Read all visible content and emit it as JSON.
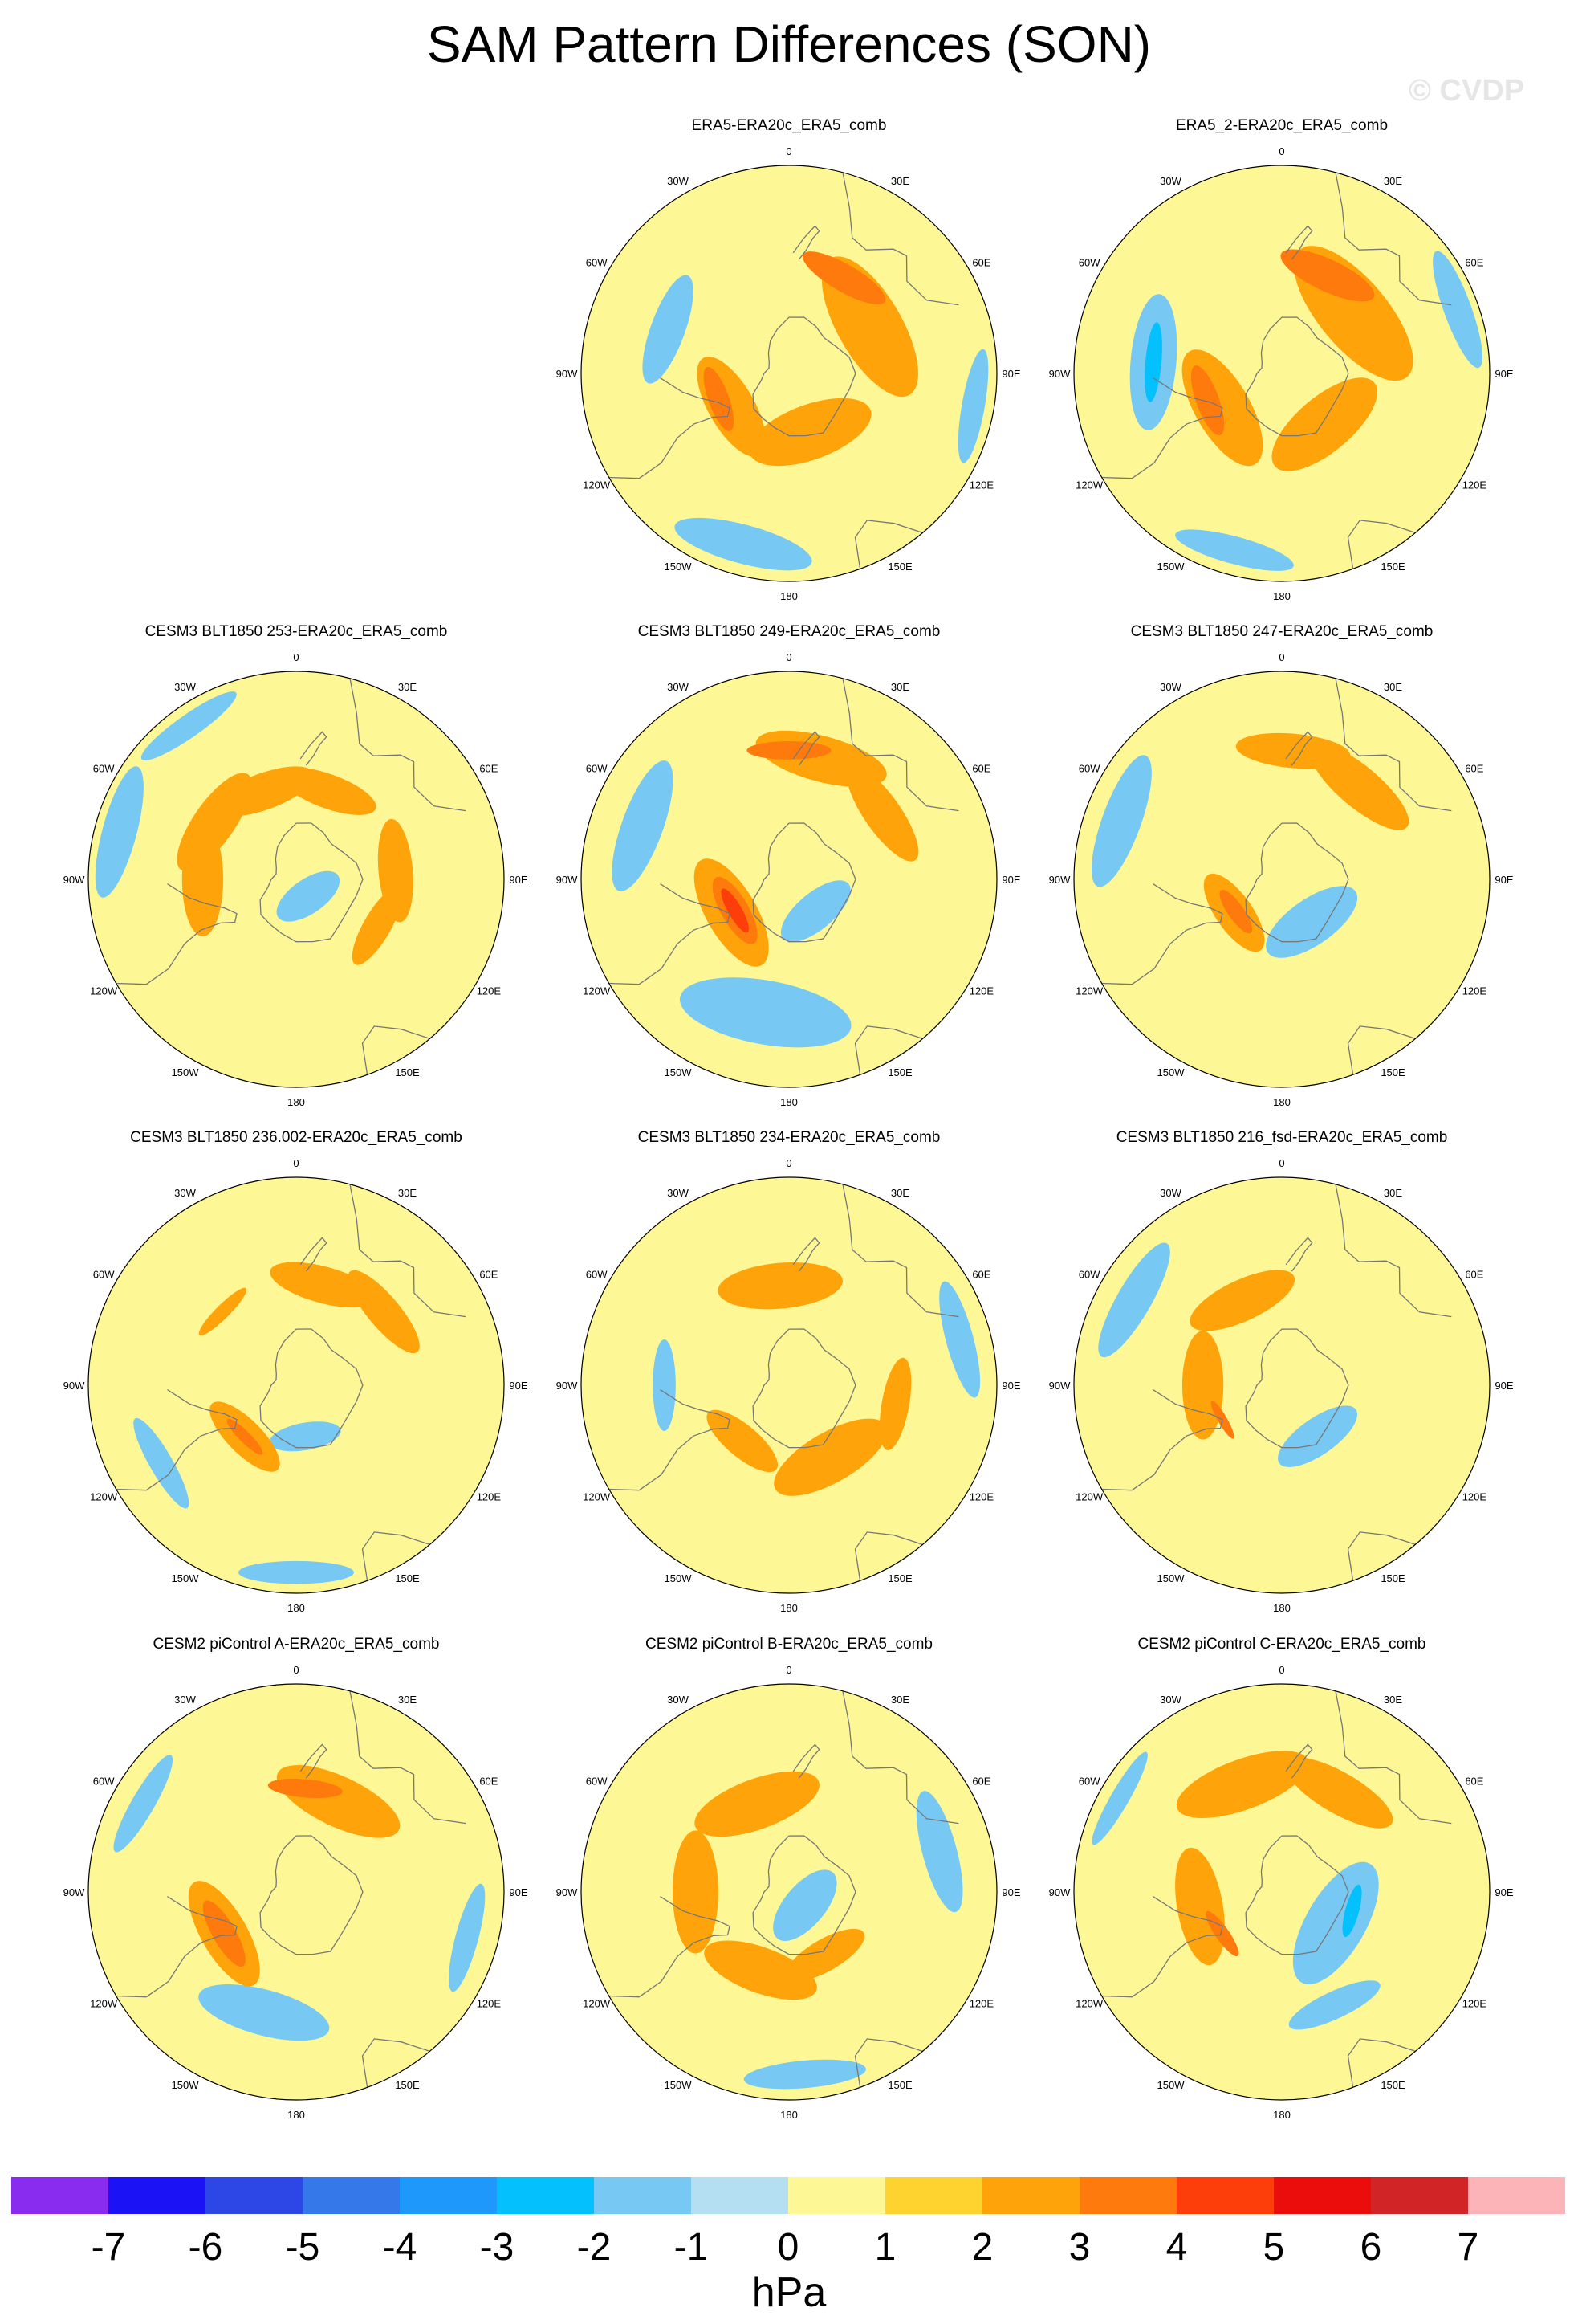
{
  "figure": {
    "title": "SAM Pattern Differences (SON)",
    "watermark": "© CVDP"
  },
  "colors": {
    "background": "#ffffff",
    "land_outline": "#777777",
    "map_border": "#000000"
  },
  "longitude_labels": [
    "0",
    "30E",
    "60E",
    "90E",
    "120E",
    "150E",
    "180",
    "150W",
    "120W",
    "90W",
    "60W",
    "30W"
  ],
  "chart_data": {
    "type": "polar-stereographic contour map panels",
    "variable": "SAM pattern difference",
    "units": "hPa",
    "panels": [
      {
        "title": "ERA5-ERA20c_ERA5_comb",
        "max_positive": 3,
        "min_negative": -1,
        "features": [
          {
            "lon": 150,
            "r": 0.53,
            "v": 3,
            "rw": 0.12
          },
          {
            "lon": 120,
            "r": 0.45,
            "v": 2,
            "rw": 0.28
          },
          {
            "lon": 290,
            "r": 0.36,
            "v": 3,
            "rw": 0.09
          },
          {
            "lon": 300,
            "r": 0.32,
            "v": 2,
            "rw": 0.2
          },
          {
            "lon": 20,
            "r": 0.3,
            "v": 2,
            "rw": 0.24
          },
          {
            "lon": 250,
            "r": 0.62,
            "v": -1,
            "rw": 0.15
          },
          {
            "lon": 345,
            "r": 0.85,
            "v": -1,
            "rw": 0.17
          },
          {
            "lon": 80,
            "r": 0.9,
            "v": -1,
            "rw": 0.1
          }
        ]
      },
      {
        "title": "ERA5_2-ERA20c_ERA5_comb",
        "max_positive": 3,
        "min_negative": -2,
        "features": [
          {
            "lon": 155,
            "r": 0.52,
            "v": 3,
            "rw": 0.14
          },
          {
            "lon": 130,
            "r": 0.45,
            "v": 2,
            "rw": 0.3
          },
          {
            "lon": 290,
            "r": 0.38,
            "v": 3,
            "rw": 0.1
          },
          {
            "lon": 300,
            "r": 0.33,
            "v": 2,
            "rw": 0.24
          },
          {
            "lon": 40,
            "r": 0.32,
            "v": 2,
            "rw": 0.24
          },
          {
            "lon": 265,
            "r": 0.62,
            "v": -2,
            "rw": 0.07
          },
          {
            "lon": 265,
            "r": 0.62,
            "v": -1,
            "rw": 0.2
          },
          {
            "lon": 110,
            "r": 0.9,
            "v": -1,
            "rw": 0.12
          },
          {
            "lon": 345,
            "r": 0.88,
            "v": -1,
            "rw": 0.12
          }
        ]
      },
      {
        "title": "CESM3 BLT1850 253-ERA20c_ERA5_comb",
        "max_positive": 2,
        "min_negative": -1,
        "features": [
          {
            "lon": 200,
            "r": 0.45,
            "v": 2,
            "rw": 0.16
          },
          {
            "lon": 235,
            "r": 0.48,
            "v": 2,
            "rw": 0.18
          },
          {
            "lon": 270,
            "r": 0.45,
            "v": 2,
            "rw": 0.18
          },
          {
            "lon": 160,
            "r": 0.45,
            "v": 2,
            "rw": 0.15
          },
          {
            "lon": 95,
            "r": 0.48,
            "v": 2,
            "rw": 0.15
          },
          {
            "lon": 60,
            "r": 0.45,
            "v": 2,
            "rw": 0.12
          },
          {
            "lon": 35,
            "r": 0.1,
            "v": -1,
            "rw": 0.15
          },
          {
            "lon": 255,
            "r": 0.88,
            "v": -1,
            "rw": 0.15
          },
          {
            "lon": 215,
            "r": 0.9,
            "v": -1,
            "rw": 0.1
          }
        ]
      },
      {
        "title": "CESM3 BLT1850 249-ERA20c_ERA5_comb",
        "max_positive": 4,
        "min_negative": -1,
        "features": [
          {
            "lon": 300,
            "r": 0.3,
            "v": 4,
            "rw": 0.06
          },
          {
            "lon": 300,
            "r": 0.3,
            "v": 3,
            "rw": 0.12
          },
          {
            "lon": 300,
            "r": 0.32,
            "v": 2,
            "rw": 0.22
          },
          {
            "lon": 180,
            "r": 0.62,
            "v": 3,
            "rw": 0.08
          },
          {
            "lon": 165,
            "r": 0.6,
            "v": 2,
            "rw": 0.2
          },
          {
            "lon": 125,
            "r": 0.55,
            "v": 2,
            "rw": 0.16
          },
          {
            "lon": 350,
            "r": 0.65,
            "v": -1,
            "rw": 0.28
          },
          {
            "lon": 40,
            "r": 0.2,
            "v": -1,
            "rw": 0.16
          },
          {
            "lon": 250,
            "r": 0.75,
            "v": -1,
            "rw": 0.18
          }
        ]
      },
      {
        "title": "CESM3 BLT1850 247-ERA20c_ERA5_comb",
        "max_positive": 3,
        "min_negative": -1,
        "features": [
          {
            "lon": 305,
            "r": 0.27,
            "v": 3,
            "rw": 0.07
          },
          {
            "lon": 305,
            "r": 0.28,
            "v": 2,
            "rw": 0.16
          },
          {
            "lon": 175,
            "r": 0.62,
            "v": 2,
            "rw": 0.15
          },
          {
            "lon": 140,
            "r": 0.58,
            "v": 2,
            "rw": 0.18
          },
          {
            "lon": 35,
            "r": 0.25,
            "v": -1,
            "rw": 0.2
          },
          {
            "lon": 250,
            "r": 0.82,
            "v": -1,
            "rw": 0.17
          }
        ]
      },
      {
        "title": "CESM3 BLT1850 236.002-ERA20c_ERA5_comb",
        "max_positive": 3,
        "min_negative": -1,
        "features": [
          {
            "lon": 315,
            "r": 0.35,
            "v": 3,
            "rw": 0.05
          },
          {
            "lon": 315,
            "r": 0.35,
            "v": 2,
            "rw": 0.15
          },
          {
            "lon": 165,
            "r": 0.5,
            "v": 2,
            "rw": 0.16
          },
          {
            "lon": 130,
            "r": 0.55,
            "v": 2,
            "rw": 0.14
          },
          {
            "lon": 225,
            "r": 0.5,
            "v": 2,
            "rw": 0.06
          },
          {
            "lon": 10,
            "r": 0.25,
            "v": -1,
            "rw": 0.12
          },
          {
            "lon": 0,
            "r": 0.9,
            "v": -1,
            "rw": 0.1
          },
          {
            "lon": 300,
            "r": 0.75,
            "v": -1,
            "rw": 0.1
          }
        ]
      },
      {
        "title": "CESM3 BLT1850 234-ERA20c_ERA5_comb",
        "max_positive": 2,
        "min_negative": -1,
        "features": [
          {
            "lon": 185,
            "r": 0.48,
            "v": 2,
            "rw": 0.2
          },
          {
            "lon": 30,
            "r": 0.4,
            "v": 2,
            "rw": 0.22
          },
          {
            "lon": 320,
            "r": 0.35,
            "v": 2,
            "rw": 0.14
          },
          {
            "lon": 80,
            "r": 0.52,
            "v": 2,
            "rw": 0.12
          },
          {
            "lon": 270,
            "r": 0.6,
            "v": -1,
            "rw": 0.1
          },
          {
            "lon": 105,
            "r": 0.85,
            "v": -1,
            "rw": 0.12
          }
        ]
      },
      {
        "title": "CESM3 BLT1850 216_fsd-ERA20c_ERA5_comb",
        "max_positive": 3,
        "min_negative": -1,
        "features": [
          {
            "lon": 300,
            "r": 0.33,
            "v": 3,
            "rw": 0.04
          },
          {
            "lon": 270,
            "r": 0.38,
            "v": 2,
            "rw": 0.18
          },
          {
            "lon": 205,
            "r": 0.45,
            "v": 2,
            "rw": 0.18
          },
          {
            "lon": 35,
            "r": 0.3,
            "v": -1,
            "rw": 0.16
          },
          {
            "lon": 240,
            "r": 0.82,
            "v": -1,
            "rw": 0.15
          }
        ]
      },
      {
        "title": "CESM2 piControl A-ERA20c_ERA5_comb",
        "max_positive": 3,
        "min_negative": -1,
        "features": [
          {
            "lon": 300,
            "r": 0.4,
            "v": 3,
            "rw": 0.1
          },
          {
            "lon": 300,
            "r": 0.4,
            "v": 2,
            "rw": 0.2
          },
          {
            "lon": 175,
            "r": 0.5,
            "v": 3,
            "rw": 0.08
          },
          {
            "lon": 155,
            "r": 0.48,
            "v": 2,
            "rw": 0.22
          },
          {
            "lon": 345,
            "r": 0.6,
            "v": -1,
            "rw": 0.2
          },
          {
            "lon": 75,
            "r": 0.85,
            "v": -1,
            "rw": 0.1
          },
          {
            "lon": 240,
            "r": 0.85,
            "v": -1,
            "rw": 0.1
          }
        ]
      },
      {
        "title": "CESM2 piControl B-ERA20c_ERA5_comb",
        "max_positive": 2,
        "min_negative": -1,
        "features": [
          {
            "lon": 200,
            "r": 0.45,
            "v": 2,
            "rw": 0.22
          },
          {
            "lon": 270,
            "r": 0.45,
            "v": 2,
            "rw": 0.2
          },
          {
            "lon": 340,
            "r": 0.4,
            "v": 2,
            "rw": 0.2
          },
          {
            "lon": 30,
            "r": 0.35,
            "v": 2,
            "rw": 0.14
          },
          {
            "lon": 50,
            "r": 0.1,
            "v": -1,
            "rw": 0.18
          },
          {
            "lon": 5,
            "r": 0.88,
            "v": -1,
            "rw": 0.12
          },
          {
            "lon": 105,
            "r": 0.75,
            "v": -1,
            "rw": 0.15
          }
        ]
      },
      {
        "title": "CESM2 piControl C-ERA20c_ERA5_comb",
        "max_positive": 3,
        "min_negative": -2,
        "features": [
          {
            "lon": 305,
            "r": 0.35,
            "v": 3,
            "rw": 0.06
          },
          {
            "lon": 280,
            "r": 0.4,
            "v": 2,
            "rw": 0.2
          },
          {
            "lon": 200,
            "r": 0.55,
            "v": 2,
            "rw": 0.22
          },
          {
            "lon": 150,
            "r": 0.55,
            "v": 2,
            "rw": 0.18
          },
          {
            "lon": 75,
            "r": 0.35,
            "v": -2,
            "rw": 0.06
          },
          {
            "lon": 60,
            "r": 0.3,
            "v": -1,
            "rw": 0.26
          },
          {
            "lon": 25,
            "r": 0.6,
            "v": -1,
            "rw": 0.12
          },
          {
            "lon": 240,
            "r": 0.9,
            "v": -1,
            "rw": 0.08
          }
        ]
      }
    ],
    "colorbar": {
      "label": "hPa",
      "ticks": [
        "-7",
        "-6",
        "-5",
        "-4",
        "-3",
        "-2",
        "-1",
        "0",
        "1",
        "2",
        "3",
        "4",
        "5",
        "6",
        "7"
      ],
      "levels": [
        -7,
        -6,
        -5,
        -4,
        -3,
        -2,
        -1,
        0,
        1,
        2,
        3,
        4,
        5,
        6,
        7
      ],
      "colors": [
        "#8a2cf0",
        "#1b13f5",
        "#2d46e6",
        "#3478ea",
        "#1f98fb",
        "#04c0fc",
        "#77c8f3",
        "#b4def2",
        "#fdf795",
        "#fed22f",
        "#fea40a",
        "#fe7a0d",
        "#fd3e0a",
        "#ea0d0b",
        "#d12426",
        "#fcb4b8"
      ]
    }
  }
}
